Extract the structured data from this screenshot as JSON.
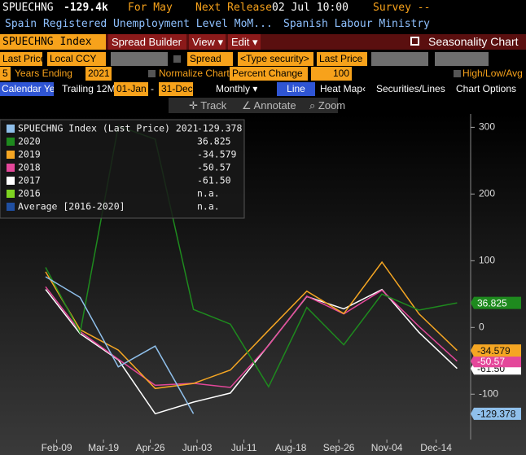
{
  "header": {
    "symbol": "SPUECHNG",
    "last": "-129.4k",
    "period": "For May",
    "next_release_label": "Next Release",
    "next_release": "02 Jul 10:00",
    "survey": "Survey --",
    "description": "Spain Registered Unemployment Level MoM...",
    "source": "Spanish Labour Ministry"
  },
  "menu": {
    "security": "SPUECHNG Index",
    "spread_builder": "Spread Builder",
    "view": "View ▾",
    "edit": "Edit ▾",
    "title": "Seasonality Chart"
  },
  "row4": {
    "field1": "Last Price",
    "currency": "Local CCY",
    "spread": "Spread",
    "security": "<Type security>",
    "field2": "Last Price"
  },
  "row5": {
    "years": "5",
    "years_label": "Years Ending",
    "end_year": "2021",
    "normalize": "Normalize Chart",
    "mode": "Percent Change",
    "base": "100",
    "hla": "High/Low/Avg"
  },
  "row6": {
    "calendar": "Calendar Year",
    "trailing": "Trailing 12M",
    "start": "01-Jan",
    "dash": "-",
    "end": "31-Dec",
    "frequency": "Monthly ▾",
    "line": "Line",
    "heatmap": "Heat Map",
    "arrow": "‹",
    "securities": "Securities/Lines",
    "options": "Chart Options"
  },
  "tools": {
    "track": "✛ Track",
    "annotate": "∠ Annotate",
    "zoom": "⌕ Zoom"
  },
  "chart_data": {
    "type": "line",
    "x": [
      31,
      59,
      90,
      120,
      151,
      181,
      212,
      243,
      273,
      304,
      334,
      365
    ],
    "xlim": [
      -6,
      376
    ],
    "xticks": [
      {
        "value": 40,
        "label": "Feb-09"
      },
      {
        "value": 78,
        "label": "Mar-19"
      },
      {
        "value": 116,
        "label": "Apr-26"
      },
      {
        "value": 154,
        "label": "Jun-03"
      },
      {
        "value": 192,
        "label": "Jul-11"
      },
      {
        "value": 230,
        "label": "Aug-18"
      },
      {
        "value": 269,
        "label": "Sep-26"
      },
      {
        "value": 308,
        "label": "Nov-04"
      },
      {
        "value": 348,
        "label": "Dec-14"
      }
    ],
    "ylim": [
      -168,
      320
    ],
    "yticks": [
      -100,
      0,
      100,
      200,
      300
    ],
    "legend": "upper left",
    "series": [
      {
        "name": "SPUECHNG Index (Last Price) 2021",
        "color": "#8fbfea",
        "legend_label": "-129.378",
        "values": [
          76,
          45,
          -59,
          -28,
          -129.378,
          null,
          null,
          null,
          null,
          null,
          null,
          null
        ]
      },
      {
        "name": "2020",
        "color": "#1e8a1e",
        "legend_label": "36.825",
        "values": [
          90,
          -7.8,
          302,
          282,
          27,
          5,
          -89,
          30,
          -26,
          50,
          26,
          36.825
        ]
      },
      {
        "name": "2019",
        "color": "#f5a623",
        "legend_label": "-34.579",
        "values": [
          83.5,
          -3.3,
          -33.9,
          -91.5,
          -84,
          -63.8,
          -4.3,
          54.4,
          20.7,
          98,
          20.5,
          -34.579
        ]
      },
      {
        "name": "2018",
        "color": "#e4479a",
        "legend_label": "-50.57",
        "values": [
          61,
          -6.3,
          -47.7,
          -86.7,
          -83.7,
          -89.9,
          -27,
          47,
          20.4,
          55.7,
          1.6,
          -50.57
        ]
      },
      {
        "name": "2017",
        "color": "#ffffff",
        "legend_label": "-61.50",
        "values": [
          57,
          -9.4,
          -48.6,
          -129.3,
          -111.9,
          -98.3,
          -26.5,
          46.4,
          27.9,
          56.8,
          -7.3,
          -61.5
        ]
      },
      {
        "name": "2016",
        "color": "#7ed321",
        "legend_label": "n.a.",
        "values": [
          null,
          null,
          null,
          null,
          null,
          null,
          null,
          null,
          null,
          null,
          null,
          null
        ]
      },
      {
        "name": "Average  [2016-2020]",
        "color": "#1f4ea0",
        "legend_label": "n.a.",
        "values": [
          null,
          null,
          null,
          null,
          null,
          null,
          null,
          null,
          null,
          null,
          null,
          null
        ]
      }
    ]
  }
}
